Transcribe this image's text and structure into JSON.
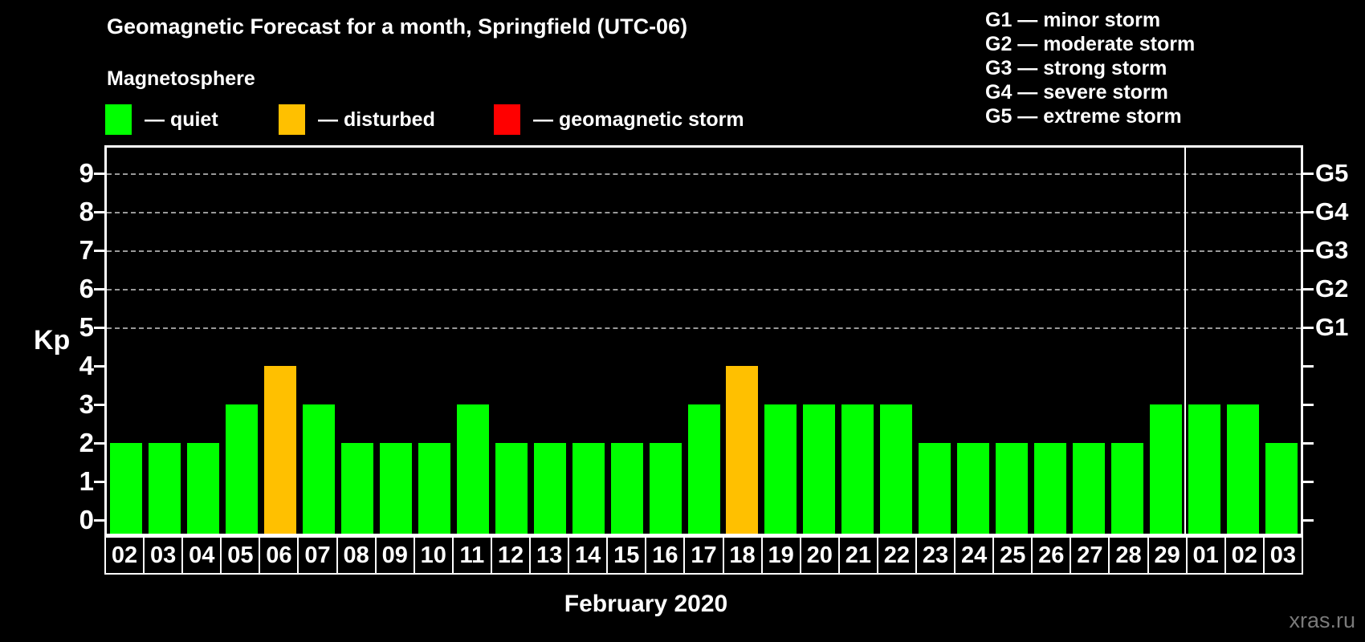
{
  "title": "Geomagnetic Forecast for a month, Springfield (UTC-06)",
  "subtitle": "Magnetosphere",
  "legend": {
    "items": [
      {
        "status": "quiet",
        "label": "— quiet",
        "color": "#00ff00"
      },
      {
        "status": "disturbed",
        "label": "— disturbed",
        "color": "#ffc000"
      },
      {
        "status": "storm",
        "label": "— geomagnetic storm",
        "color": "#ff0000"
      }
    ]
  },
  "storm_scale_legend": {
    "lines": [
      "G1 — minor storm",
      "G2 — moderate storm",
      "G3 — strong storm",
      "G4 — severe storm",
      "G5 — extreme storm"
    ]
  },
  "xaxis_title": "February 2020",
  "yaxis_title": "Kp",
  "watermark": "xras.ru",
  "chart_data": {
    "type": "bar",
    "title": "Geomagnetic Forecast for a month, Springfield (UTC-06)",
    "xlabel": "February 2020",
    "ylabel": "Kp",
    "ylim": [
      0,
      9
    ],
    "yticks": [
      0,
      1,
      2,
      3,
      4,
      5,
      6,
      7,
      8,
      9
    ],
    "gridlines_at": [
      5,
      6,
      7,
      8,
      9
    ],
    "grid": "dashed horizontal at storm levels only",
    "right_axis_labels": [
      {
        "level": 5,
        "label": "G1"
      },
      {
        "level": 6,
        "label": "G2"
      },
      {
        "level": 7,
        "label": "G3"
      },
      {
        "level": 8,
        "label": "G4"
      },
      {
        "level": 9,
        "label": "G5"
      }
    ],
    "categories": [
      "02",
      "03",
      "04",
      "05",
      "06",
      "07",
      "08",
      "09",
      "10",
      "11",
      "12",
      "13",
      "14",
      "15",
      "16",
      "17",
      "18",
      "19",
      "20",
      "21",
      "22",
      "23",
      "24",
      "25",
      "26",
      "27",
      "28",
      "29",
      "01",
      "02",
      "03"
    ],
    "values": [
      2,
      2,
      2,
      3,
      4,
      3,
      2,
      2,
      2,
      3,
      2,
      2,
      2,
      2,
      2,
      3,
      4,
      3,
      3,
      3,
      3,
      2,
      2,
      2,
      2,
      2,
      2,
      3,
      3,
      3,
      2
    ],
    "statuses": [
      "quiet",
      "quiet",
      "quiet",
      "quiet",
      "disturbed",
      "quiet",
      "quiet",
      "quiet",
      "quiet",
      "quiet",
      "quiet",
      "quiet",
      "quiet",
      "quiet",
      "quiet",
      "quiet",
      "disturbed",
      "quiet",
      "quiet",
      "quiet",
      "quiet",
      "quiet",
      "quiet",
      "quiet",
      "quiet",
      "quiet",
      "quiet",
      "quiet",
      "quiet",
      "quiet",
      "quiet"
    ],
    "status_colors": {
      "quiet": "#00ff00",
      "disturbed": "#ffc000",
      "storm": "#ff0000"
    },
    "month_separator_after_index": 27,
    "legend_position": "top"
  }
}
